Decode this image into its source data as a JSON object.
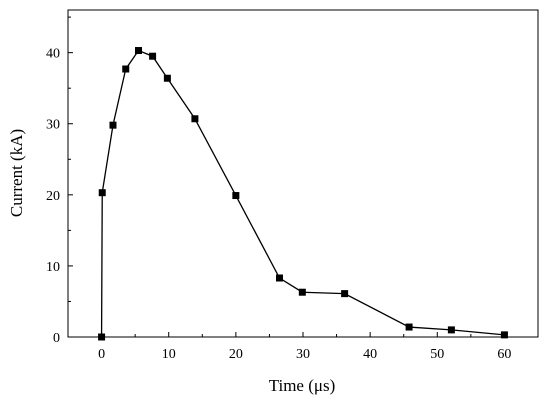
{
  "chart_data": {
    "type": "line",
    "xlabel": "Time (μs)",
    "ylabel": "Current (kA)",
    "xlim": [
      -5,
      65
    ],
    "ylim": [
      0,
      46
    ],
    "xticks": [
      0,
      10,
      20,
      30,
      40,
      50,
      60
    ],
    "yticks": [
      0,
      10,
      20,
      30,
      40
    ],
    "grid": false,
    "marker": "square",
    "series": [
      {
        "x": [
          0,
          0.1,
          1.7,
          3.6,
          5.5,
          7.6,
          9.8,
          13.9,
          20.0,
          26.5,
          29.9,
          36.2,
          45.8,
          52.1,
          60.0
        ],
        "y": [
          0,
          20.3,
          29.8,
          37.7,
          40.3,
          39.5,
          36.4,
          30.7,
          19.9,
          8.3,
          6.3,
          6.1,
          1.4,
          1.0,
          0.3
        ]
      }
    ]
  }
}
